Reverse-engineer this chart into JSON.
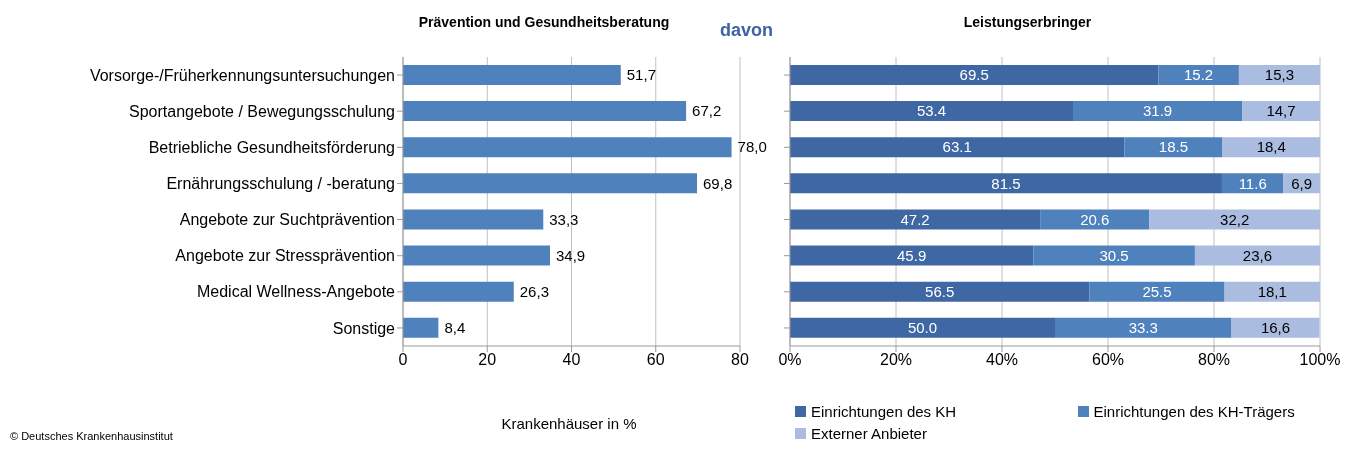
{
  "chart_data": [
    {
      "type": "bar",
      "orientation": "horizontal",
      "title": "Prävention und Gesundheitsberatung",
      "xlabel": "Krankenhäuser in %",
      "categories": [
        "Vorsorge-/Früherkennungsuntersuchungen",
        "Sportangebote / Bewegungsschulung",
        "Betriebliche Gesundheitsförderung",
        "Ernährungsschulung / -beratung",
        "Angebote zur Suchtprävention",
        "Angebote zur Stressprävention",
        "Medical Wellness-Angebote",
        "Sonstige"
      ],
      "values": [
        51.7,
        67.2,
        78.0,
        69.8,
        33.3,
        34.9,
        26.3,
        8.4
      ],
      "value_labels": [
        "51,7",
        "67,2",
        "78,0",
        "69,8",
        "33,3",
        "34,9",
        "26,3",
        "8,4"
      ],
      "color": "#4f81bd",
      "xlim": [
        0,
        80
      ],
      "xticks": [
        0,
        20,
        40,
        60,
        80
      ],
      "grid": "x",
      "legend": false,
      "annotations": [
        "© Deutsches Krankenhausinstitut"
      ]
    },
    {
      "type": "bar",
      "orientation": "horizontal",
      "stacked": true,
      "title": "Leistungserbringer",
      "categories": [
        null,
        null,
        null,
        null,
        null,
        null,
        null,
        null
      ],
      "series": [
        {
          "name": "Einrichtungen des KH",
          "color": "#3e67a3",
          "values": [
            69.5,
            53.4,
            63.1,
            81.5,
            47.2,
            45.9,
            56.5,
            50.0
          ],
          "value_labels": [
            "69.5",
            "53.4",
            "63.1",
            "81.5",
            "47.2",
            "45.9",
            "56.5",
            "50.0"
          ]
        },
        {
          "name": "Einrichtungen des KH-Trägers",
          "color": "#4f81bd",
          "values": [
            15.2,
            31.9,
            18.5,
            11.6,
            20.6,
            30.5,
            25.5,
            33.3
          ],
          "value_labels": [
            "15.2",
            "31.9",
            "18.5",
            "11.6",
            "20.6",
            "30.5",
            "25.5",
            "33.3"
          ]
        },
        {
          "name": "Externer Anbieter",
          "color": "#aabde0",
          "values": [
            15.3,
            14.7,
            18.4,
            6.9,
            32.2,
            23.6,
            18.1,
            16.6
          ],
          "value_labels": [
            "15,3",
            "14,7",
            "18,4",
            "6,9",
            "32,2",
            "23,6",
            "18,1",
            "16,6"
          ]
        }
      ],
      "xlim": [
        0,
        100
      ],
      "xticks": [
        {
          "value": 0,
          "label": "0%"
        },
        {
          "value": 20,
          "label": "20%"
        },
        {
          "value": 40,
          "label": "40%"
        },
        {
          "value": 60,
          "label": "60%"
        },
        {
          "value": 80,
          "label": "80%"
        },
        {
          "value": 100,
          "label": "100%"
        }
      ],
      "grid": "x",
      "legend": "bottom",
      "annotations": [
        "davon"
      ]
    }
  ]
}
